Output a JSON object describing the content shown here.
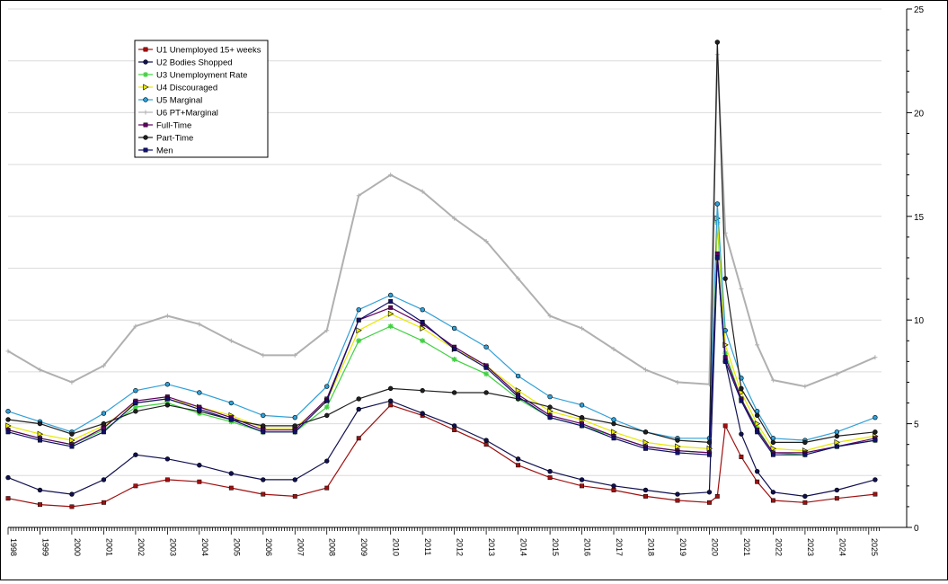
{
  "chart_data": {
    "type": "line",
    "title": "",
    "xlabel": "",
    "ylabel": "",
    "x_ticks": [
      "1998",
      "1999",
      "2000",
      "2001",
      "2002",
      "2003",
      "2004",
      "2005",
      "2006",
      "2007",
      "2008",
      "2009",
      "2010",
      "2011",
      "2012",
      "2013",
      "2014",
      "2015",
      "2016",
      "2017",
      "2018",
      "2019",
      "2020",
      "2021",
      "2022",
      "2023",
      "2024",
      "2025"
    ],
    "xlim": [
      1998,
      2025.4
    ],
    "ylim": [
      0,
      25
    ],
    "y_ticks": [
      0,
      5,
      10,
      15,
      20,
      25
    ],
    "y_axis_side": "right",
    "grid": "horizontal",
    "legend_position": "top-left",
    "series": [
      {
        "name": "U1 Unemployed 15+ weeks",
        "color": "#a01010",
        "marker": "square",
        "points": [
          [
            1998,
            1.4
          ],
          [
            1999,
            1.1
          ],
          [
            2000,
            1.0
          ],
          [
            2001,
            1.2
          ],
          [
            2002,
            2.0
          ],
          [
            2003,
            2.3
          ],
          [
            2004,
            2.2
          ],
          [
            2005,
            1.9
          ],
          [
            2006,
            1.6
          ],
          [
            2007,
            1.5
          ],
          [
            2008,
            1.9
          ],
          [
            2009,
            4.3
          ],
          [
            2010,
            5.9
          ],
          [
            2011,
            5.4
          ],
          [
            2012,
            4.7
          ],
          [
            2013,
            4.0
          ],
          [
            2014,
            3.0
          ],
          [
            2015,
            2.4
          ],
          [
            2016,
            2.0
          ],
          [
            2017,
            1.8
          ],
          [
            2018,
            1.5
          ],
          [
            2019,
            1.3
          ],
          [
            2020,
            1.2
          ],
          [
            2020.25,
            1.5
          ],
          [
            2020.5,
            4.9
          ],
          [
            2021,
            3.4
          ],
          [
            2021.5,
            2.2
          ],
          [
            2022,
            1.3
          ],
          [
            2023,
            1.2
          ],
          [
            2024,
            1.4
          ],
          [
            2025.2,
            1.6
          ]
        ]
      },
      {
        "name": "U2 Bodies Shopped",
        "color": "#101050",
        "marker": "dot",
        "points": [
          [
            1998,
            2.4
          ],
          [
            1999,
            1.8
          ],
          [
            2000,
            1.6
          ],
          [
            2001,
            2.3
          ],
          [
            2002,
            3.5
          ],
          [
            2003,
            3.3
          ],
          [
            2004,
            3.0
          ],
          [
            2005,
            2.6
          ],
          [
            2006,
            2.3
          ],
          [
            2007,
            2.3
          ],
          [
            2008,
            3.2
          ],
          [
            2009,
            5.7
          ],
          [
            2010,
            6.1
          ],
          [
            2011,
            5.5
          ],
          [
            2012,
            4.9
          ],
          [
            2013,
            4.2
          ],
          [
            2014,
            3.3
          ],
          [
            2015,
            2.7
          ],
          [
            2016,
            2.3
          ],
          [
            2017,
            2.0
          ],
          [
            2018,
            1.8
          ],
          [
            2019,
            1.6
          ],
          [
            2020,
            1.7
          ],
          [
            2020.25,
            13.0
          ],
          [
            2020.5,
            8.0
          ],
          [
            2021,
            4.5
          ],
          [
            2021.5,
            2.7
          ],
          [
            2022,
            1.7
          ],
          [
            2023,
            1.5
          ],
          [
            2024,
            1.8
          ],
          [
            2025.2,
            2.3
          ]
        ]
      },
      {
        "name": "U3 Unemployment Rate",
        "color": "#40d040",
        "marker": "star",
        "points": [
          [
            1998,
            4.7
          ],
          [
            1999,
            4.3
          ],
          [
            2000,
            4.0
          ],
          [
            2001,
            4.7
          ],
          [
            2002,
            5.8
          ],
          [
            2003,
            6.0
          ],
          [
            2004,
            5.5
          ],
          [
            2005,
            5.1
          ],
          [
            2006,
            4.6
          ],
          [
            2007,
            4.6
          ],
          [
            2008,
            5.8
          ],
          [
            2009,
            9.0
          ],
          [
            2010,
            9.7
          ],
          [
            2011,
            9.0
          ],
          [
            2012,
            8.1
          ],
          [
            2013,
            7.4
          ],
          [
            2014,
            6.2
          ],
          [
            2015,
            5.3
          ],
          [
            2016,
            4.9
          ],
          [
            2017,
            4.4
          ],
          [
            2018,
            3.9
          ],
          [
            2019,
            3.7
          ],
          [
            2020,
            3.6
          ],
          [
            2020.25,
            14.7
          ],
          [
            2020.5,
            8.4
          ],
          [
            2021,
            6.2
          ],
          [
            2021.5,
            4.8
          ],
          [
            2022,
            3.6
          ],
          [
            2023,
            3.5
          ],
          [
            2024,
            3.9
          ],
          [
            2025.2,
            4.2
          ]
        ]
      },
      {
        "name": "U4 Discouraged",
        "color": "#e8e800",
        "marker": "triangle-right",
        "points": [
          [
            1998,
            4.9
          ],
          [
            1999,
            4.5
          ],
          [
            2000,
            4.2
          ],
          [
            2001,
            4.9
          ],
          [
            2002,
            6.0
          ],
          [
            2003,
            6.2
          ],
          [
            2004,
            5.8
          ],
          [
            2005,
            5.4
          ],
          [
            2006,
            4.8
          ],
          [
            2007,
            4.8
          ],
          [
            2008,
            6.1
          ],
          [
            2009,
            9.5
          ],
          [
            2010,
            10.3
          ],
          [
            2011,
            9.6
          ],
          [
            2012,
            8.6
          ],
          [
            2013,
            7.8
          ],
          [
            2014,
            6.6
          ],
          [
            2015,
            5.6
          ],
          [
            2016,
            5.2
          ],
          [
            2017,
            4.6
          ],
          [
            2018,
            4.1
          ],
          [
            2019,
            3.9
          ],
          [
            2020,
            3.8
          ],
          [
            2020.25,
            14.9
          ],
          [
            2020.5,
            8.8
          ],
          [
            2021,
            6.5
          ],
          [
            2021.5,
            5.0
          ],
          [
            2022,
            3.8
          ],
          [
            2023,
            3.7
          ],
          [
            2024,
            4.1
          ],
          [
            2025.2,
            4.4
          ]
        ]
      },
      {
        "name": "U5  Marginal",
        "color": "#30a0d8",
        "marker": "dot",
        "points": [
          [
            1998,
            5.6
          ],
          [
            1999,
            5.1
          ],
          [
            2000,
            4.6
          ],
          [
            2001,
            5.5
          ],
          [
            2002,
            6.6
          ],
          [
            2003,
            6.9
          ],
          [
            2004,
            6.5
          ],
          [
            2005,
            6.0
          ],
          [
            2006,
            5.4
          ],
          [
            2007,
            5.3
          ],
          [
            2008,
            6.8
          ],
          [
            2009,
            10.5
          ],
          [
            2010,
            11.2
          ],
          [
            2011,
            10.5
          ],
          [
            2012,
            9.6
          ],
          [
            2013,
            8.7
          ],
          [
            2014,
            7.3
          ],
          [
            2015,
            6.3
          ],
          [
            2016,
            5.9
          ],
          [
            2017,
            5.2
          ],
          [
            2018,
            4.6
          ],
          [
            2019,
            4.3
          ],
          [
            2020,
            4.3
          ],
          [
            2020.25,
            15.6
          ],
          [
            2020.5,
            9.5
          ],
          [
            2021,
            7.2
          ],
          [
            2021.5,
            5.6
          ],
          [
            2022,
            4.3
          ],
          [
            2023,
            4.2
          ],
          [
            2024,
            4.6
          ],
          [
            2025.2,
            5.3
          ]
        ]
      },
      {
        "name": "U6  PT+Marginal",
        "color": "#b0b0b0",
        "marker": "plus",
        "points": [
          [
            1998,
            8.5
          ],
          [
            1999,
            7.6
          ],
          [
            2000,
            7.0
          ],
          [
            2001,
            7.8
          ],
          [
            2002,
            9.7
          ],
          [
            2003,
            10.2
          ],
          [
            2004,
            9.8
          ],
          [
            2005,
            9.0
          ],
          [
            2006,
            8.3
          ],
          [
            2007,
            8.3
          ],
          [
            2008,
            9.5
          ],
          [
            2009,
            16.0
          ],
          [
            2010,
            17.0
          ],
          [
            2011,
            16.2
          ],
          [
            2012,
            14.9
          ],
          [
            2013,
            13.8
          ],
          [
            2014,
            12.0
          ],
          [
            2015,
            10.2
          ],
          [
            2016,
            9.6
          ],
          [
            2017,
            8.6
          ],
          [
            2018,
            7.6
          ],
          [
            2019,
            7.0
          ],
          [
            2020,
            6.9
          ],
          [
            2020.25,
            22.8
          ],
          [
            2020.5,
            14.2
          ],
          [
            2021,
            11.5
          ],
          [
            2021.5,
            8.8
          ],
          [
            2022,
            7.1
          ],
          [
            2023,
            6.8
          ],
          [
            2024,
            7.4
          ],
          [
            2025.2,
            8.2
          ]
        ]
      },
      {
        "name": "Full-Time",
        "color": "#600060",
        "marker": "square",
        "points": [
          [
            1998,
            4.7
          ],
          [
            1999,
            4.3
          ],
          [
            2000,
            4.0
          ],
          [
            2001,
            4.8
          ],
          [
            2002,
            6.1
          ],
          [
            2003,
            6.3
          ],
          [
            2004,
            5.8
          ],
          [
            2005,
            5.3
          ],
          [
            2006,
            4.7
          ],
          [
            2007,
            4.7
          ],
          [
            2008,
            6.2
          ],
          [
            2009,
            10.0
          ],
          [
            2010,
            10.6
          ],
          [
            2011,
            9.8
          ],
          [
            2012,
            8.7
          ],
          [
            2013,
            7.8
          ],
          [
            2014,
            6.4
          ],
          [
            2015,
            5.4
          ],
          [
            2016,
            5.0
          ],
          [
            2017,
            4.4
          ],
          [
            2018,
            3.9
          ],
          [
            2019,
            3.7
          ],
          [
            2020,
            3.6
          ],
          [
            2020.25,
            13.2
          ],
          [
            2020.5,
            8.2
          ],
          [
            2021,
            6.2
          ],
          [
            2021.5,
            4.7
          ],
          [
            2022,
            3.6
          ],
          [
            2023,
            3.6
          ],
          [
            2024,
            3.9
          ],
          [
            2025.2,
            4.3
          ]
        ]
      },
      {
        "name": "Part-Time",
        "color": "#202020",
        "marker": "dot",
        "points": [
          [
            1998,
            5.2
          ],
          [
            1999,
            5.0
          ],
          [
            2000,
            4.5
          ],
          [
            2001,
            5.0
          ],
          [
            2002,
            5.6
          ],
          [
            2003,
            5.9
          ],
          [
            2004,
            5.6
          ],
          [
            2005,
            5.2
          ],
          [
            2006,
            4.9
          ],
          [
            2007,
            4.9
          ],
          [
            2008,
            5.4
          ],
          [
            2009,
            6.2
          ],
          [
            2010,
            6.7
          ],
          [
            2011,
            6.6
          ],
          [
            2012,
            6.5
          ],
          [
            2013,
            6.5
          ],
          [
            2014,
            6.2
          ],
          [
            2015,
            5.8
          ],
          [
            2016,
            5.3
          ],
          [
            2017,
            5.0
          ],
          [
            2018,
            4.6
          ],
          [
            2019,
            4.2
          ],
          [
            2020,
            4.1
          ],
          [
            2020.25,
            23.4
          ],
          [
            2020.5,
            12.0
          ],
          [
            2021,
            6.7
          ],
          [
            2021.5,
            5.4
          ],
          [
            2022,
            4.1
          ],
          [
            2023,
            4.1
          ],
          [
            2024,
            4.4
          ],
          [
            2025.2,
            4.6
          ]
        ]
      },
      {
        "name": "Men",
        "color": "#101070",
        "marker": "square",
        "points": [
          [
            1998,
            4.6
          ],
          [
            1999,
            4.2
          ],
          [
            2000,
            3.9
          ],
          [
            2001,
            4.6
          ],
          [
            2002,
            6.0
          ],
          [
            2003,
            6.2
          ],
          [
            2004,
            5.7
          ],
          [
            2005,
            5.2
          ],
          [
            2006,
            4.6
          ],
          [
            2007,
            4.6
          ],
          [
            2008,
            6.1
          ],
          [
            2009,
            10.0
          ],
          [
            2010,
            10.9
          ],
          [
            2011,
            9.9
          ],
          [
            2012,
            8.6
          ],
          [
            2013,
            7.7
          ],
          [
            2014,
            6.3
          ],
          [
            2015,
            5.3
          ],
          [
            2016,
            4.9
          ],
          [
            2017,
            4.3
          ],
          [
            2018,
            3.8
          ],
          [
            2019,
            3.6
          ],
          [
            2020,
            3.5
          ],
          [
            2020.25,
            13.0
          ],
          [
            2020.5,
            8.0
          ],
          [
            2021,
            6.1
          ],
          [
            2021.5,
            4.6
          ],
          [
            2022,
            3.5
          ],
          [
            2023,
            3.5
          ],
          [
            2024,
            3.9
          ],
          [
            2025.2,
            4.2
          ]
        ]
      }
    ]
  }
}
